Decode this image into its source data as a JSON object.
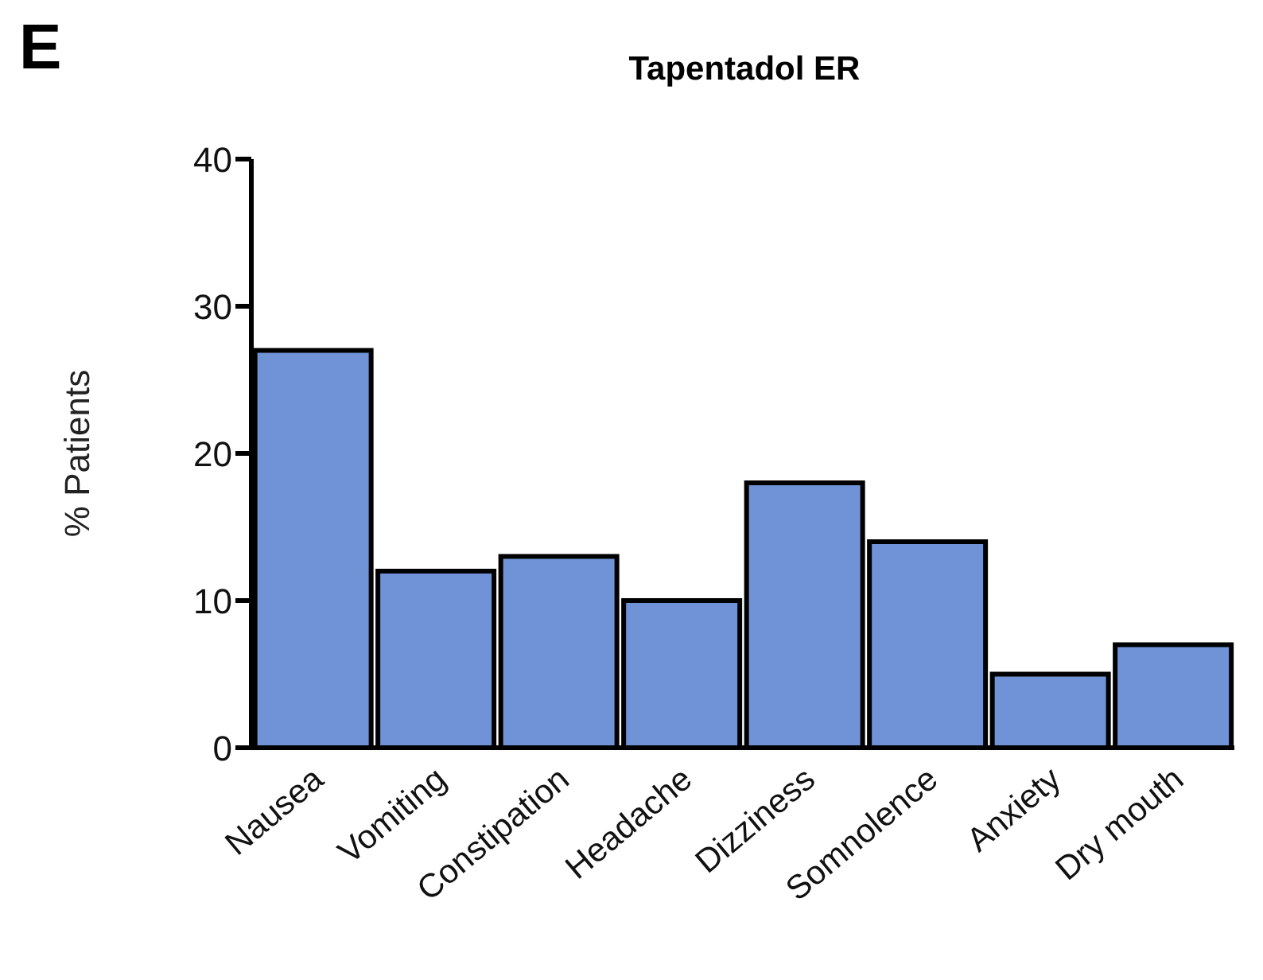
{
  "chart_data": {
    "type": "bar",
    "title": "Tapentadol ER",
    "ylabel": "% Patients",
    "annotations": [
      "E"
    ],
    "categories": [
      "Nausea",
      "Vomiting",
      "Constipation",
      "Headache",
      "Dizziness",
      "Somnolence",
      "Anxiety",
      "Dry mouth"
    ],
    "values": [
      27,
      12,
      13,
      10,
      18,
      14,
      5,
      7
    ],
    "color": "#6f93d6",
    "ylim": [
      0,
      40
    ],
    "yticks": [
      0,
      10,
      20,
      30,
      40
    ],
    "grid": false,
    "legend": false
  }
}
